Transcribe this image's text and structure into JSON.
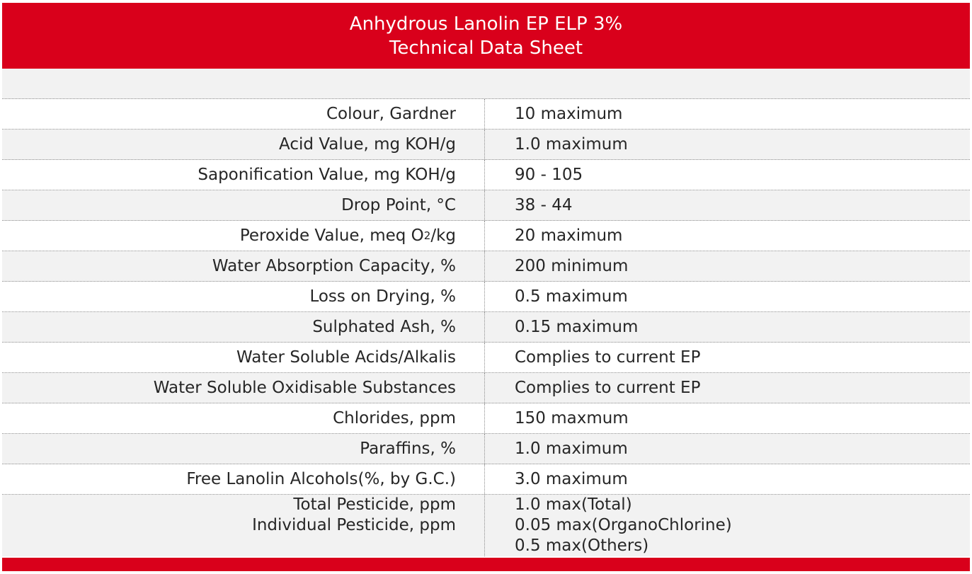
{
  "header": {
    "title_line1": "Anhydrous Lanolin EP ELP 3%",
    "title_line2": "Technical Data Sheet",
    "color": "#d9001b"
  },
  "rows": [
    {
      "label": "Colour, Gardner",
      "value": "10 maximum"
    },
    {
      "label": "Acid Value, mg KOH/g",
      "value": "1.0 maximum"
    },
    {
      "label": "Saponification Value, mg KOH/g",
      "value": "90 - 105"
    },
    {
      "label": "Drop Point, °C",
      "value": "38 - 44"
    },
    {
      "label_prefix": "Peroxide Value, meq O",
      "label_sub": "2",
      "label_suffix": "/kg",
      "value": "20 maximum"
    },
    {
      "label": "Water Absorption Capacity, %",
      "value": "200 minimum"
    },
    {
      "label": "Loss on Drying, %",
      "value": "0.5 maximum"
    },
    {
      "label": "Sulphated Ash, %",
      "value": "0.15 maximum"
    },
    {
      "label": "Water Soluble Acids/Alkalis",
      "value": "Complies to current EP"
    },
    {
      "label": "Water Soluble Oxidisable Substances",
      "value": "Complies to current EP"
    },
    {
      "label": "Chlorides, ppm",
      "value": "150 maxmum"
    },
    {
      "label": "Paraffins, %",
      "value": "1.0 maximum"
    },
    {
      "label": "Free Lanolin Alcohols(%, by G.C.)",
      "value": "3.0 maximum"
    }
  ],
  "pesticide_row": {
    "labels": [
      "Total Pesticide, ppm",
      "Individual Pesticide, ppm"
    ],
    "values": [
      "1.0 max(Total)",
      "0.05 max(OrganoChlorine)",
      "0.5 max(Others)"
    ]
  }
}
